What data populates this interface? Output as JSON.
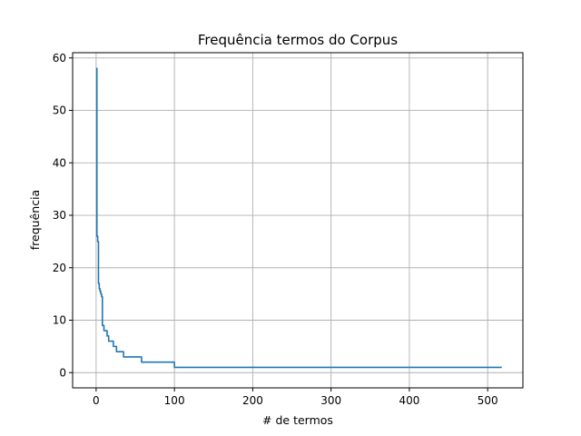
{
  "chart_data": {
    "type": "line",
    "title": "Frequência termos do Corpus",
    "xlabel": "# de termos",
    "ylabel": "frequência",
    "xlim": [
      -30,
      545
    ],
    "ylim": [
      -2.9,
      61
    ],
    "xticks": [
      0,
      100,
      200,
      300,
      400,
      500
    ],
    "yticks": [
      0,
      10,
      20,
      30,
      40,
      50,
      60
    ],
    "grid": true,
    "line_color": "#1f77b4",
    "series": [
      {
        "x": [
          0,
          1,
          2,
          3,
          4,
          5,
          6,
          7,
          8,
          10,
          12,
          14,
          16,
          18,
          22,
          26,
          30,
          35,
          40,
          45,
          50,
          55,
          58,
          60,
          70,
          80,
          90,
          99,
          100,
          150,
          200,
          300,
          400,
          500,
          518
        ],
        "y": [
          58,
          26,
          25,
          17,
          16,
          15.5,
          15,
          14.5,
          9,
          8,
          8,
          7,
          6,
          6,
          5,
          4,
          4,
          3,
          3,
          3,
          3,
          3,
          2,
          2,
          2,
          2,
          2,
          2,
          1,
          1,
          1,
          1,
          1,
          1,
          1
        ],
        "step": "post"
      }
    ]
  }
}
